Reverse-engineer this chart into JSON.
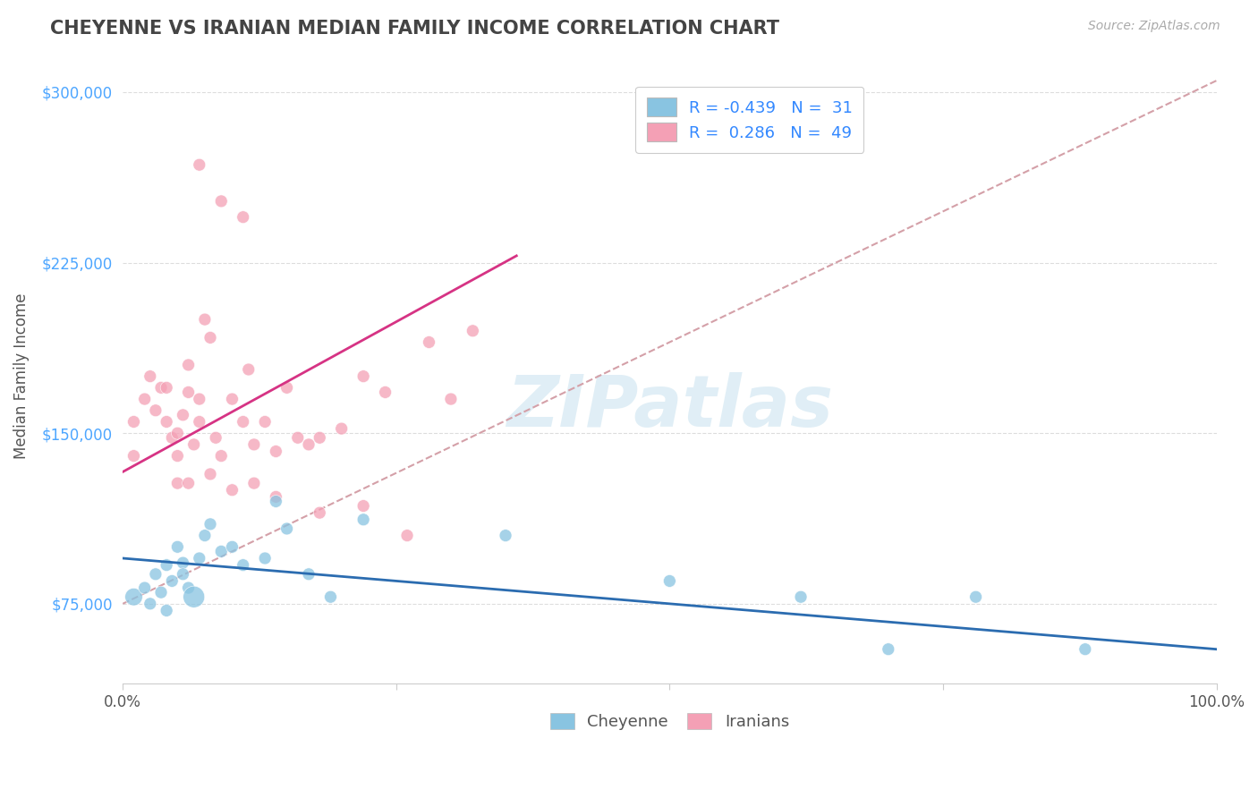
{
  "title": "CHEYENNE VS IRANIAN MEDIAN FAMILY INCOME CORRELATION CHART",
  "source": "Source: ZipAtlas.com",
  "ylabel": "Median Family Income",
  "xlim": [
    0.0,
    1.0
  ],
  "ylim": [
    40000,
    310000
  ],
  "yticks": [
    75000,
    150000,
    225000,
    300000
  ],
  "ytick_labels": [
    "$75,000",
    "$150,000",
    "$225,000",
    "$300,000"
  ],
  "cheyenne_color": "#89c4e1",
  "iranians_color": "#f4a0b5",
  "cheyenne_line_color": "#2b6cb0",
  "iranians_line_color": "#d63384",
  "dashed_line_color": "#d4a0a8",
  "watermark_color": "#cce4f0",
  "background_color": "#ffffff",
  "grid_color": "#dddddd",
  "ytick_color": "#4da6ff",
  "title_color": "#444444",
  "source_color": "#aaaaaa",
  "legend_text_color": "#3388ff",
  "legend_r_cheyenne": "R = -0.439",
  "legend_n_cheyenne": "N =  31",
  "legend_r_iranians": "R =  0.286",
  "legend_n_iranians": "N =  49",
  "watermark": "ZIPatlas",
  "cheyenne_x": [
    0.01,
    0.02,
    0.025,
    0.03,
    0.035,
    0.04,
    0.04,
    0.045,
    0.05,
    0.055,
    0.055,
    0.06,
    0.065,
    0.07,
    0.075,
    0.08,
    0.09,
    0.1,
    0.11,
    0.13,
    0.14,
    0.15,
    0.17,
    0.19,
    0.22,
    0.35,
    0.5,
    0.62,
    0.7,
    0.78,
    0.88
  ],
  "cheyenne_y": [
    78000,
    82000,
    75000,
    88000,
    80000,
    72000,
    92000,
    85000,
    100000,
    93000,
    88000,
    82000,
    78000,
    95000,
    105000,
    110000,
    98000,
    100000,
    92000,
    95000,
    120000,
    108000,
    88000,
    78000,
    112000,
    105000,
    85000,
    78000,
    55000,
    78000,
    55000
  ],
  "cheyenne_sizes": [
    200,
    100,
    100,
    100,
    100,
    100,
    100,
    100,
    100,
    100,
    100,
    100,
    300,
    100,
    100,
    100,
    100,
    100,
    100,
    100,
    100,
    100,
    100,
    100,
    100,
    100,
    100,
    100,
    100,
    100,
    100
  ],
  "iranians_x": [
    0.01,
    0.01,
    0.02,
    0.025,
    0.03,
    0.035,
    0.04,
    0.04,
    0.045,
    0.05,
    0.05,
    0.055,
    0.06,
    0.06,
    0.065,
    0.07,
    0.07,
    0.075,
    0.08,
    0.085,
    0.09,
    0.1,
    0.11,
    0.115,
    0.12,
    0.13,
    0.14,
    0.15,
    0.16,
    0.17,
    0.18,
    0.2,
    0.22,
    0.24,
    0.28,
    0.3,
    0.32,
    0.05,
    0.06,
    0.08,
    0.1,
    0.12,
    0.14,
    0.18,
    0.22,
    0.26,
    0.07,
    0.09,
    0.11
  ],
  "iranians_y": [
    155000,
    140000,
    165000,
    175000,
    160000,
    170000,
    155000,
    170000,
    148000,
    150000,
    140000,
    158000,
    168000,
    180000,
    145000,
    155000,
    165000,
    200000,
    192000,
    148000,
    140000,
    165000,
    155000,
    178000,
    145000,
    155000,
    142000,
    170000,
    148000,
    145000,
    148000,
    152000,
    175000,
    168000,
    190000,
    165000,
    195000,
    128000,
    128000,
    132000,
    125000,
    128000,
    122000,
    115000,
    118000,
    105000,
    268000,
    252000,
    245000
  ],
  "iranians_sizes": [
    100,
    100,
    100,
    100,
    100,
    100,
    100,
    100,
    100,
    100,
    100,
    100,
    100,
    100,
    100,
    100,
    100,
    100,
    100,
    100,
    100,
    100,
    100,
    100,
    100,
    100,
    100,
    100,
    100,
    100,
    100,
    100,
    100,
    100,
    100,
    100,
    100,
    100,
    100,
    100,
    100,
    100,
    100,
    100,
    100,
    100,
    100,
    100,
    100
  ],
  "chey_line_x0": 0.0,
  "chey_line_x1": 1.0,
  "chey_line_y0": 95000,
  "chey_line_y1": 55000,
  "iran_line_x0": 0.0,
  "iran_line_x1": 0.36,
  "iran_line_y0": 133000,
  "iran_line_y1": 228000,
  "dash_line_x0": 0.0,
  "dash_line_x1": 1.0,
  "dash_line_y0": 75000,
  "dash_line_y1": 305000
}
